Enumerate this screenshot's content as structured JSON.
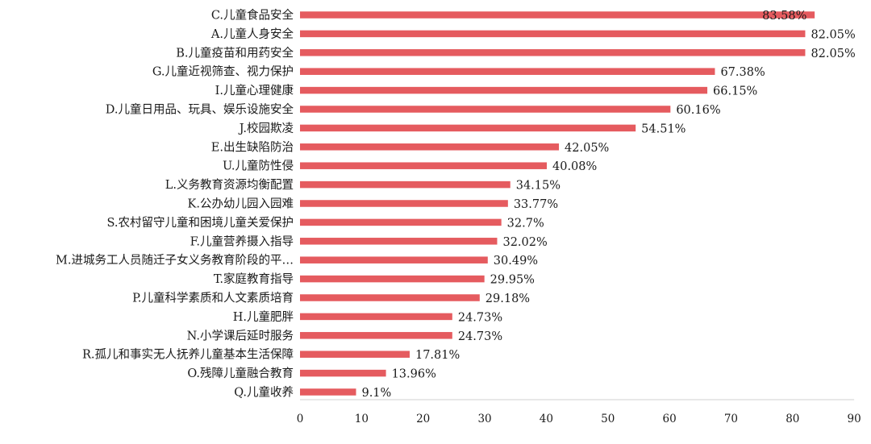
{
  "chart_data": {
    "type": "bar",
    "orientation": "horizontal",
    "title": "",
    "xlabel": "",
    "ylabel": "",
    "xlim": [
      0,
      90
    ],
    "xticks": [
      0,
      10,
      20,
      30,
      40,
      50,
      60,
      70,
      80,
      90
    ],
    "grid": false,
    "bar_color": "#e55b5f",
    "categories": [
      "C.儿童食品安全",
      "A.儿童人身安全",
      "B.儿童疫苗和用药安全",
      "G.儿童近视筛查、视力保护",
      "I.儿童心理健康",
      "D.儿童日用品、玩具、娱乐设施安全",
      "J.校园欺凌",
      "E.出生缺陷防治",
      "U.儿童防性侵",
      "L.义务教育资源均衡配置",
      "K.公办幼儿园入园难",
      "S.农村留守儿童和困境儿童关爱保护",
      "F.儿童营养摄入指导",
      "M.进城务工人员随迁子女义务教育阶段的平…",
      "T.家庭教育指导",
      "P.儿童科学素质和人文素质培育",
      "H.儿童肥胖",
      "N.小学课后延时服务",
      "R.孤儿和事实无人抚养儿童基本生活保障",
      "O.残障儿童融合教育",
      "Q.儿童收养"
    ],
    "values": [
      83.58,
      82.05,
      82.05,
      67.38,
      66.15,
      60.16,
      54.51,
      42.05,
      40.08,
      34.15,
      33.77,
      32.7,
      32.02,
      30.49,
      29.95,
      29.18,
      24.73,
      24.73,
      17.81,
      13.96,
      9.1
    ],
    "data_labels": [
      "83.58%",
      "82.05%",
      "82.05%",
      "67.38%",
      "66.15%",
      "60.16%",
      "54.51%",
      "42.05%",
      "40.08%",
      "34.15%",
      "33.77%",
      "32.7%",
      "32.02%",
      "30.49%",
      "29.95%",
      "29.18%",
      "24.73%",
      "24.73%",
      "17.81%",
      "13.96%",
      "9.1%"
    ]
  }
}
